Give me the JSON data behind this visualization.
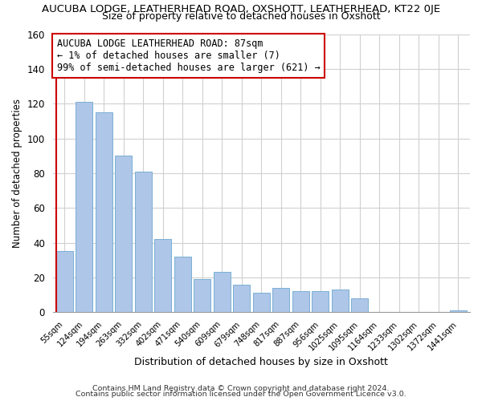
{
  "title": "AUCUBA LODGE, LEATHERHEAD ROAD, OXSHOTT, LEATHERHEAD, KT22 0JE",
  "subtitle": "Size of property relative to detached houses in Oxshott",
  "xlabel": "Distribution of detached houses by size in Oxshott",
  "ylabel": "Number of detached properties",
  "bin_labels": [
    "55sqm",
    "124sqm",
    "194sqm",
    "263sqm",
    "332sqm",
    "402sqm",
    "471sqm",
    "540sqm",
    "609sqm",
    "679sqm",
    "748sqm",
    "817sqm",
    "887sqm",
    "956sqm",
    "1025sqm",
    "1095sqm",
    "1164sqm",
    "1233sqm",
    "1302sqm",
    "1372sqm",
    "1441sqm"
  ],
  "bar_heights": [
    35,
    121,
    115,
    90,
    81,
    42,
    32,
    19,
    23,
    16,
    11,
    14,
    12,
    12,
    13,
    8,
    0,
    0,
    0,
    0,
    1
  ],
  "highlight_bar_index": 0,
  "bar_color": "#aec6e8",
  "bar_edge_color": "#7aafd4",
  "highlight_color": "#cc0000",
  "ylim": [
    0,
    160
  ],
  "yticks": [
    0,
    20,
    40,
    60,
    80,
    100,
    120,
    140,
    160
  ],
  "annotation_title": "AUCUBA LODGE LEATHERHEAD ROAD: 87sqm",
  "annotation_line1": "← 1% of detached houses are smaller (7)",
  "annotation_line2": "99% of semi-detached houses are larger (621) →",
  "footer1": "Contains HM Land Registry data © Crown copyright and database right 2024.",
  "footer2": "Contains public sector information licensed under the Open Government Licence v3.0."
}
